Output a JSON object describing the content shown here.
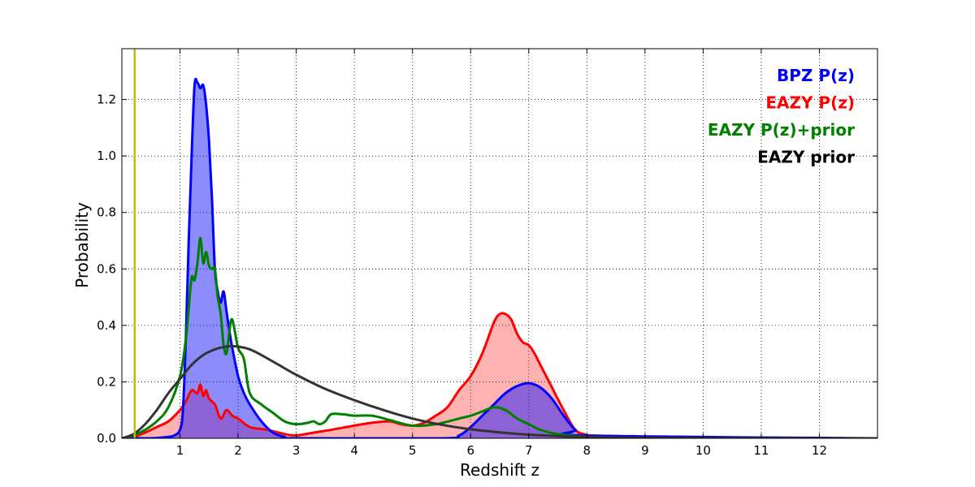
{
  "chart_data": {
    "type": "area",
    "title": "",
    "xlabel": "Redshift z",
    "ylabel": "Probability",
    "xlim": [
      0,
      13
    ],
    "ylim": [
      0,
      1.38
    ],
    "x_ticks": [
      1,
      2,
      3,
      4,
      5,
      6,
      7,
      8,
      9,
      10,
      11,
      12
    ],
    "y_ticks": [
      0.0,
      0.2,
      0.4,
      0.6,
      0.8,
      1.0,
      1.2
    ],
    "x_tick_labels": [
      "1",
      "2",
      "3",
      "4",
      "5",
      "6",
      "7",
      "8",
      "9",
      "10",
      "11",
      "12"
    ],
    "y_tick_labels": [
      "0.0",
      "0.2",
      "0.4",
      "0.6",
      "0.8",
      "1.0",
      "1.2"
    ],
    "grid": true,
    "legend_position": "top-right",
    "vertical_line": {
      "x": 0.22,
      "color": "#bfbf00"
    },
    "series": [
      {
        "name": "EAZY P(z)",
        "color": "#ff0000",
        "fill": "#ff0000",
        "fill_opacity": 0.3,
        "x": [
          0,
          0.2,
          0.4,
          0.6,
          0.8,
          1.0,
          1.1,
          1.2,
          1.3,
          1.35,
          1.4,
          1.45,
          1.5,
          1.6,
          1.7,
          1.8,
          1.9,
          2.0,
          2.2,
          2.5,
          2.8,
          3.0,
          3.3,
          3.6,
          4.0,
          4.3,
          4.6,
          4.8,
          5.0,
          5.2,
          5.4,
          5.6,
          5.8,
          6.0,
          6.2,
          6.4,
          6.5,
          6.6,
          6.7,
          6.8,
          6.9,
          7.0,
          7.1,
          7.2,
          7.4,
          7.6,
          7.8,
          8.0,
          8.2,
          8.4,
          8.6,
          8.8,
          9.0,
          13.0
        ],
        "values": [
          0,
          0.005,
          0.02,
          0.04,
          0.06,
          0.1,
          0.13,
          0.17,
          0.16,
          0.19,
          0.15,
          0.17,
          0.14,
          0.12,
          0.07,
          0.1,
          0.08,
          0.07,
          0.04,
          0.03,
          0.015,
          0.01,
          0.02,
          0.03,
          0.045,
          0.055,
          0.06,
          0.05,
          0.045,
          0.055,
          0.08,
          0.11,
          0.17,
          0.22,
          0.3,
          0.41,
          0.44,
          0.44,
          0.42,
          0.37,
          0.34,
          0.33,
          0.3,
          0.26,
          0.18,
          0.1,
          0.03,
          0.012,
          0.006,
          0.008,
          0.005,
          0.008,
          0,
          0
        ]
      },
      {
        "name": "BPZ P(z)",
        "color": "#0000ff",
        "fill": "#0000ff",
        "fill_opacity": 0.45,
        "x": [
          0,
          0.5,
          0.8,
          0.9,
          1.0,
          1.05,
          1.1,
          1.15,
          1.2,
          1.25,
          1.3,
          1.35,
          1.4,
          1.45,
          1.5,
          1.55,
          1.6,
          1.65,
          1.7,
          1.75,
          1.8,
          1.85,
          1.9,
          2.0,
          2.1,
          2.2,
          2.4,
          2.6,
          2.8,
          3.0,
          5.5,
          5.8,
          6.0,
          6.2,
          6.4,
          6.6,
          6.8,
          7.0,
          7.2,
          7.4,
          7.6,
          7.8,
          8.0,
          13.0
        ],
        "values": [
          0,
          0,
          0.005,
          0.01,
          0.03,
          0.1,
          0.35,
          0.7,
          1.0,
          1.25,
          1.26,
          1.24,
          1.25,
          1.18,
          1.05,
          0.85,
          0.6,
          0.52,
          0.48,
          0.52,
          0.45,
          0.38,
          0.32,
          0.22,
          0.16,
          0.12,
          0.06,
          0.02,
          0.005,
          0,
          0,
          0.01,
          0.04,
          0.08,
          0.12,
          0.16,
          0.185,
          0.195,
          0.18,
          0.14,
          0.08,
          0.03,
          0.01,
          0
        ]
      },
      {
        "name": "EAZY P(z)+prior",
        "color": "#008000",
        "fill": null,
        "x": [
          0,
          0.2,
          0.4,
          0.6,
          0.8,
          1.0,
          1.1,
          1.15,
          1.2,
          1.25,
          1.3,
          1.35,
          1.4,
          1.45,
          1.5,
          1.55,
          1.6,
          1.65,
          1.7,
          1.75,
          1.8,
          1.85,
          1.9,
          2.0,
          2.1,
          2.2,
          2.4,
          2.6,
          2.8,
          3.0,
          3.2,
          3.3,
          3.4,
          3.5,
          3.6,
          3.8,
          4.0,
          4.3,
          4.6,
          5.0,
          5.4,
          5.8,
          6.0,
          6.2,
          6.4,
          6.6,
          6.8,
          7.0,
          7.2,
          7.5,
          8.0,
          8.5,
          9.0,
          13.0
        ],
        "values": [
          0,
          0.01,
          0.03,
          0.06,
          0.11,
          0.22,
          0.35,
          0.46,
          0.57,
          0.56,
          0.62,
          0.71,
          0.62,
          0.66,
          0.61,
          0.6,
          0.6,
          0.5,
          0.44,
          0.33,
          0.3,
          0.38,
          0.42,
          0.32,
          0.28,
          0.16,
          0.12,
          0.09,
          0.06,
          0.05,
          0.055,
          0.06,
          0.05,
          0.06,
          0.085,
          0.085,
          0.08,
          0.08,
          0.065,
          0.045,
          0.05,
          0.07,
          0.08,
          0.095,
          0.11,
          0.1,
          0.07,
          0.05,
          0.03,
          0.015,
          0.005,
          0.002,
          0,
          0
        ]
      },
      {
        "name": "EAZY prior",
        "color": "#333333",
        "fill": null,
        "x": [
          0,
          0.2,
          0.4,
          0.6,
          0.8,
          1.0,
          1.2,
          1.4,
          1.6,
          1.8,
          2.0,
          2.2,
          2.4,
          2.7,
          3.0,
          3.5,
          4.0,
          4.5,
          5.0,
          5.5,
          6.0,
          6.5,
          7.0,
          7.5,
          8.0,
          8.5,
          9.0,
          10.0,
          11.0,
          12.0,
          13.0
        ],
        "values": [
          0,
          0.015,
          0.05,
          0.1,
          0.16,
          0.21,
          0.26,
          0.295,
          0.315,
          0.325,
          0.325,
          0.315,
          0.295,
          0.26,
          0.225,
          0.175,
          0.135,
          0.1,
          0.07,
          0.048,
          0.032,
          0.021,
          0.013,
          0.008,
          0.005,
          0.003,
          0.0015,
          0.0005,
          0.0002,
          0.0001,
          0
        ]
      }
    ],
    "legend": [
      "BPZ P(z)",
      "EAZY P(z)",
      "EAZY P(z)+prior",
      "EAZY prior"
    ],
    "legend_colors": [
      "#0000ff",
      "#ff0000",
      "#008000",
      "#000000"
    ]
  }
}
